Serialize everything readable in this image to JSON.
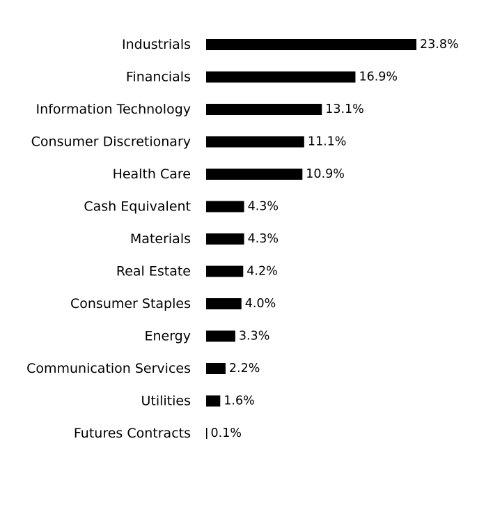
{
  "chart_data": {
    "type": "bar",
    "orientation": "horizontal",
    "title": "",
    "xlabel": "",
    "ylabel": "",
    "grid": false,
    "legend": "none",
    "bar_color": "#000000",
    "xlim": [
      0,
      23.8
    ],
    "categories": [
      "Industrials",
      "Financials",
      "Information Technology",
      "Consumer Discretionary",
      "Health Care",
      "Cash Equivalent",
      "Materials",
      "Real Estate",
      "Consumer Staples",
      "Energy",
      "Communication Services",
      "Utilities",
      "Futures Contracts"
    ],
    "values": [
      23.8,
      16.9,
      13.1,
      11.1,
      10.9,
      4.3,
      4.3,
      4.2,
      4.0,
      3.3,
      2.2,
      1.6,
      0.1
    ],
    "value_labels": [
      "23.8%",
      "16.9%",
      "13.1%",
      "11.1%",
      "10.9%",
      "4.3%",
      "4.3%",
      "4.2%",
      "4.0%",
      "3.3%",
      "2.2%",
      "1.6%",
      "0.1%"
    ]
  }
}
